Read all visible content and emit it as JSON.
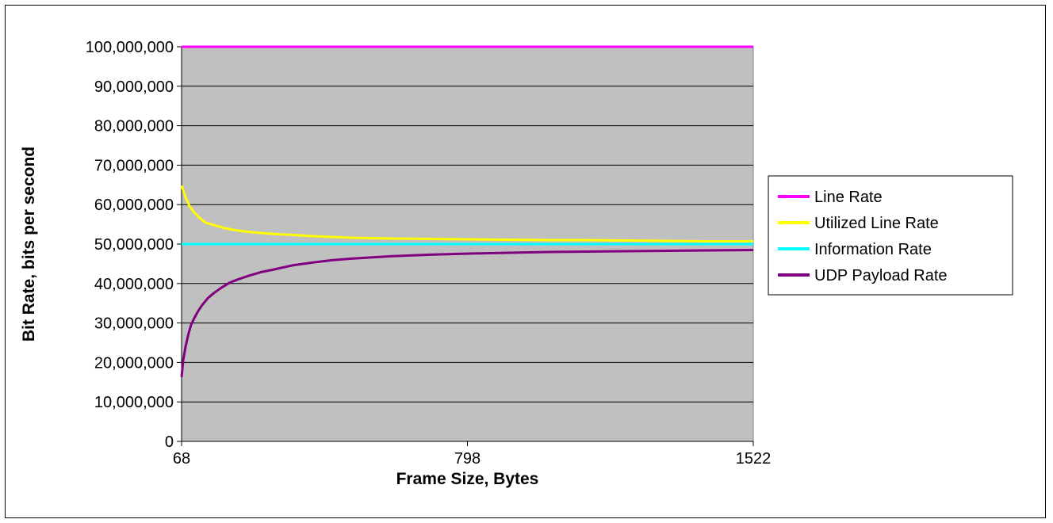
{
  "chart_data": {
    "type": "line",
    "title": "",
    "xlabel": "Frame Size, Bytes",
    "ylabel": "Bit Rate, bits per second",
    "xlim": [
      68,
      1522
    ],
    "ylim": [
      0,
      100000000
    ],
    "x_ticks": [
      "68",
      "798",
      "1522"
    ],
    "y_ticks": [
      "0",
      "10,000,000",
      "20,000,000",
      "30,000,000",
      "40,000,000",
      "50,000,000",
      "60,000,000",
      "70,000,000",
      "80,000,000",
      "90,000,000",
      "100,000,000"
    ],
    "grid": true,
    "legend_position": "right",
    "plot_background": "#c0c0c0",
    "series": [
      {
        "name": "Line Rate",
        "color": "#ff00ff",
        "x": [
          68,
          1522
        ],
        "y": [
          100000000,
          100000000
        ]
      },
      {
        "name": "Utilized Line Rate",
        "color": "#ffff00",
        "x": [
          68,
          78,
          88,
          100,
          115,
          130,
          150,
          175,
          200,
          230,
          260,
          300,
          350,
          400,
          450,
          500,
          600,
          700,
          800,
          900,
          1000,
          1100,
          1200,
          1300,
          1400,
          1522
        ],
        "y": [
          64800000,
          61900000,
          59700000,
          58000000,
          56500000,
          55400000,
          54800000,
          54100000,
          53600000,
          53200000,
          52900000,
          52600000,
          52300000,
          52000000,
          51800000,
          51600000,
          51400000,
          51300000,
          51200000,
          51100000,
          51000000,
          51000000,
          50900000,
          50800000,
          50700000,
          50700000
        ]
      },
      {
        "name": "Information Rate",
        "color": "#00ffff",
        "x": [
          68,
          1522
        ],
        "y": [
          50000000,
          50000000
        ]
      },
      {
        "name": "UDP Payload Rate",
        "color": "#800080",
        "x": [
          68,
          72,
          78,
          85,
          92,
          100,
          110,
          120,
          135,
          150,
          170,
          190,
          210,
          240,
          270,
          300,
          350,
          400,
          450,
          500,
          600,
          700,
          800,
          900,
          1000,
          1100,
          1200,
          1300,
          1400,
          1522
        ],
        "y": [
          16300000,
          20500000,
          24000000,
          27000000,
          29500000,
          31200000,
          33000000,
          34500000,
          36300000,
          37600000,
          39000000,
          40200000,
          41000000,
          42000000,
          42900000,
          43500000,
          44600000,
          45300000,
          45900000,
          46300000,
          46900000,
          47300000,
          47600000,
          47800000,
          48000000,
          48100000,
          48200000,
          48300000,
          48400000,
          48500000
        ]
      }
    ]
  }
}
